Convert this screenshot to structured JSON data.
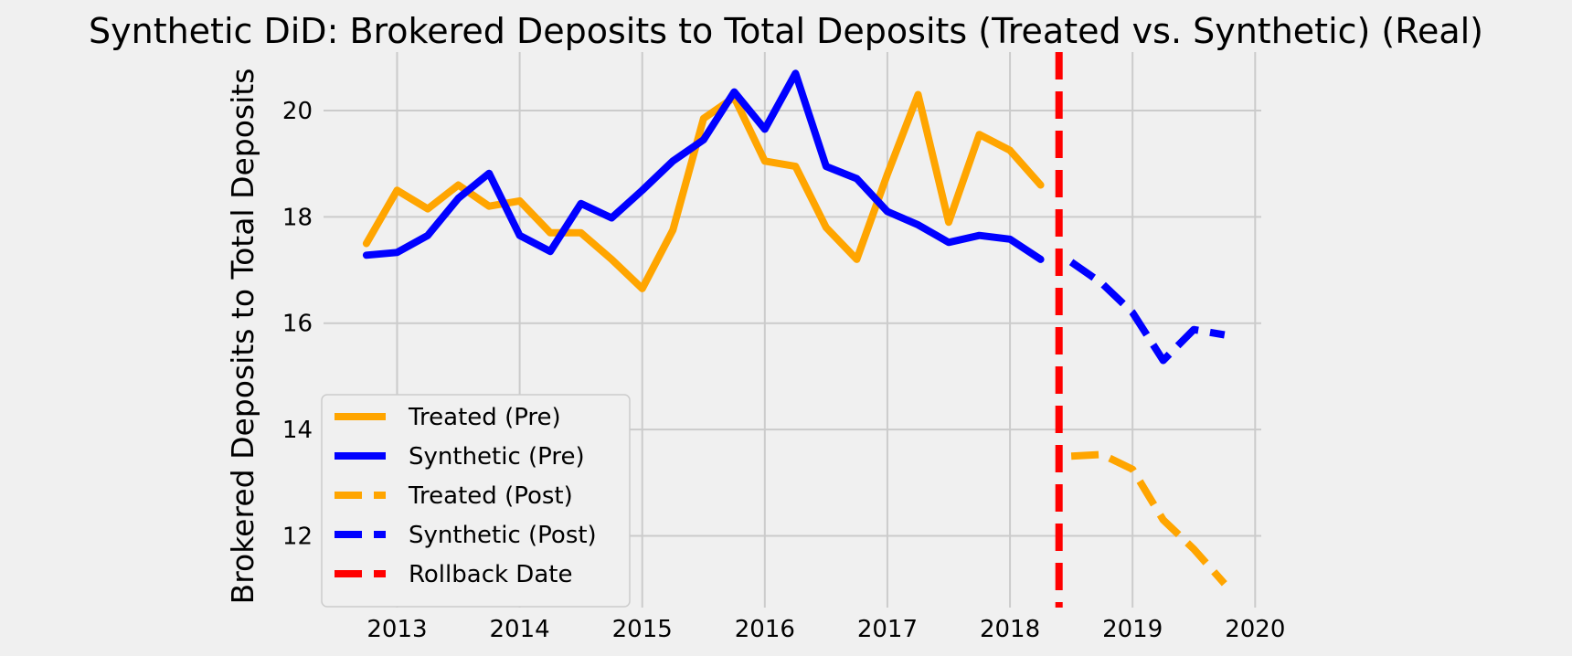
{
  "chart_data": {
    "type": "line",
    "title": "Synthetic DiD: Brokered Deposits to Total Deposits (Treated vs. Synthetic) (Real)",
    "xlabel": "",
    "ylabel": "Brokered Deposits to Total Deposits",
    "xlim": [
      2012.4,
      2020.05
    ],
    "ylim": [
      10.65,
      21.1
    ],
    "x_ticks": [
      2013,
      2014,
      2015,
      2016,
      2017,
      2018,
      2019,
      2020
    ],
    "y_ticks": [
      12,
      14,
      16,
      18,
      20
    ],
    "grid": true,
    "legend_position": "lower-left",
    "series": [
      {
        "name": "Treated (Pre)",
        "color": "#ffa500",
        "style": "solid",
        "x": [
          2012.75,
          2013.0,
          2013.25,
          2013.5,
          2013.75,
          2014.0,
          2014.25,
          2014.5,
          2014.75,
          2015.0,
          2015.25,
          2015.5,
          2015.75,
          2016.0,
          2016.25,
          2016.5,
          2016.75,
          2017.0,
          2017.25,
          2017.5,
          2017.75,
          2018.0,
          2018.25
        ],
        "y": [
          17.5,
          18.5,
          18.15,
          18.6,
          18.2,
          18.3,
          17.7,
          17.7,
          17.2,
          16.65,
          17.75,
          19.85,
          20.25,
          19.05,
          18.95,
          17.8,
          17.2,
          18.8,
          20.3,
          17.9,
          19.55,
          19.25,
          18.6
        ]
      },
      {
        "name": "Synthetic (Pre)",
        "color": "#0000ff",
        "style": "solid",
        "x": [
          2012.75,
          2013.0,
          2013.25,
          2013.5,
          2013.75,
          2014.0,
          2014.25,
          2014.5,
          2014.75,
          2015.0,
          2015.25,
          2015.5,
          2015.75,
          2016.0,
          2016.25,
          2016.5,
          2016.75,
          2017.0,
          2017.25,
          2017.5,
          2017.75,
          2018.0,
          2018.25
        ],
        "y": [
          17.28,
          17.33,
          17.65,
          18.35,
          18.82,
          17.65,
          17.35,
          18.25,
          17.98,
          18.5,
          19.05,
          19.45,
          20.35,
          19.65,
          20.7,
          18.95,
          18.72,
          18.1,
          17.85,
          17.52,
          17.65,
          17.58,
          17.2
        ]
      },
      {
        "name": "Treated (Post)",
        "color": "#ffa500",
        "style": "dashed",
        "x": [
          2018.5,
          2018.75,
          2019.0,
          2019.25,
          2019.5,
          2019.75
        ],
        "y": [
          13.5,
          13.53,
          13.25,
          12.3,
          11.75,
          11.1
        ]
      },
      {
        "name": "Synthetic (Post)",
        "color": "#0000ff",
        "style": "dashed",
        "x": [
          2018.5,
          2018.75,
          2019.0,
          2019.25,
          2019.5,
          2019.75
        ],
        "y": [
          17.15,
          16.75,
          16.2,
          15.3,
          15.88,
          15.78
        ]
      }
    ],
    "vlines": [
      {
        "name": "Rollback Date",
        "x": 2018.4,
        "color": "#ff0000",
        "style": "dashed"
      }
    ]
  }
}
